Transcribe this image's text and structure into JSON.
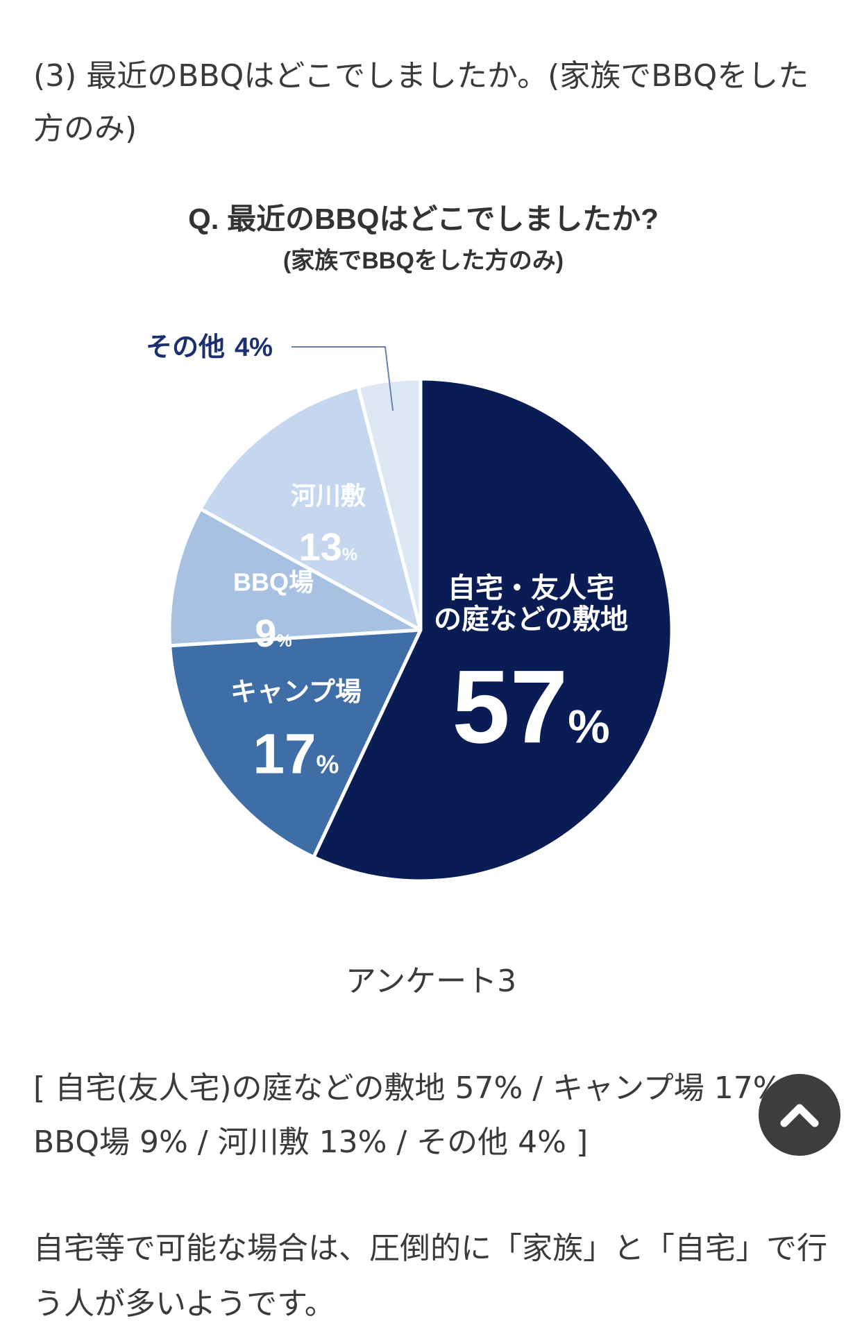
{
  "intro": {
    "text": "(3) 最近のBBQはどこでしましたか。(家族でBBQをした方のみ)"
  },
  "caption": "アンケート3",
  "summary": "[ 自宅(友人宅)の庭などの敷地 57% / キャンプ場 17% / BBQ場 9% / 河川敷 13% / その他 4% ]",
  "conclusion": "自宅等で可能な場合は、圧倒的に「家族」と「自宅」で行う人が多いようです。",
  "scroll_top": {
    "icon": "chevron-up-icon"
  },
  "chart_data": {
    "type": "pie",
    "title": "Q. 最近のBBQはどこでしましたか?",
    "subtitle": "(家族でBBQをした方のみ)",
    "unit": "%",
    "slices": [
      {
        "label_lines": [
          "自宅・友人宅",
          "の庭などの敷地"
        ],
        "value": 57,
        "color": "#0a1c54",
        "text_color": "#ffffff",
        "label_size": 40,
        "value_size": 150
      },
      {
        "label_lines": [
          "キャンプ場"
        ],
        "value": 17,
        "color": "#3f6da6",
        "text_color": "#ffffff",
        "label_size": 38,
        "value_size": 82
      },
      {
        "label_lines": [
          "BBQ場"
        ],
        "value": 9,
        "color": "#a8c1e0",
        "text_color": "#ffffff",
        "label_size": 36,
        "value_size": 56
      },
      {
        "label_lines": [
          "河川敷"
        ],
        "value": 13,
        "color": "#c4d7ee",
        "text_color": "#ffffff",
        "label_size": 36,
        "value_size": 56
      },
      {
        "label_lines": [
          "その他"
        ],
        "value": 4,
        "color": "#dde7f3",
        "text_color": "#1c2f6e",
        "label_size": 38,
        "value_size": 38,
        "external": true
      }
    ],
    "colors": {
      "title": "#333333",
      "leader_line": "#6b7fb0"
    }
  }
}
